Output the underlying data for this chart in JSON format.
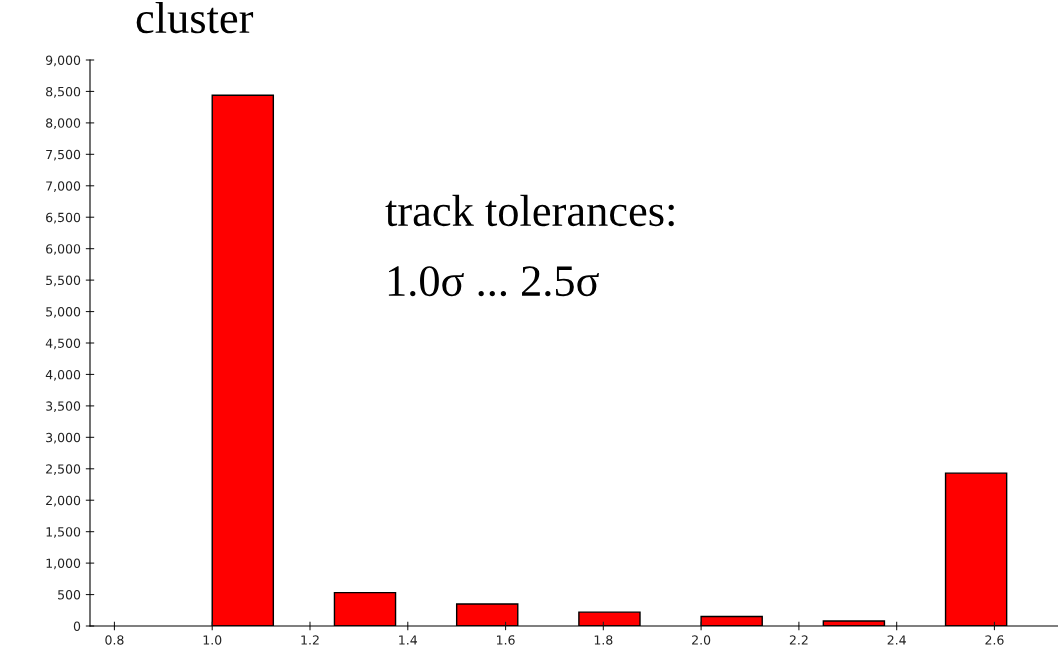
{
  "chart_data": {
    "type": "bar",
    "title": "cluster",
    "annotations": [
      "track tolerances:",
      "1.0σ ... 2.5σ"
    ],
    "x": [
      1.0625,
      1.3125,
      1.5625,
      1.8125,
      2.0625,
      2.3125,
      2.5625
    ],
    "values": [
      8440,
      530,
      350,
      220,
      150,
      80,
      2430
    ],
    "color": "#ff0000",
    "xlim": [
      0.75,
      2.73
    ],
    "xticks": [
      0.8,
      {
        "value": 1,
        "label": "1.0"
      },
      1.2,
      1.4,
      1.6,
      1.8,
      {
        "value": 2,
        "label": "2.0"
      },
      2.2,
      2.4,
      2.6
    ],
    "ylim": [
      0,
      9000
    ],
    "yticks": [
      {
        "value": 0,
        "label": "0"
      },
      {
        "value": 500,
        "label": "500"
      },
      {
        "value": 1000,
        "label": "1,000"
      },
      {
        "value": 1500,
        "label": "1,500"
      },
      {
        "value": 2000,
        "label": "2,000"
      },
      {
        "value": 2500,
        "label": "2,500"
      },
      {
        "value": 3000,
        "label": "3,000"
      },
      {
        "value": 3500,
        "label": "3,500"
      },
      {
        "value": 4000,
        "label": "4,000"
      },
      {
        "value": 4500,
        "label": "4,500"
      },
      {
        "value": 5000,
        "label": "5,000"
      },
      {
        "value": 5500,
        "label": "5,500"
      },
      {
        "value": 6000,
        "label": "6,000"
      },
      {
        "value": 6500,
        "label": "6,500"
      },
      {
        "value": 7000,
        "label": "7,000"
      },
      {
        "value": 7500,
        "label": "7,500"
      },
      {
        "value": 8000,
        "label": "8,000"
      },
      {
        "value": 8500,
        "label": "8,500"
      },
      {
        "value": 9000,
        "label": "9,000"
      }
    ],
    "grid": false
  }
}
